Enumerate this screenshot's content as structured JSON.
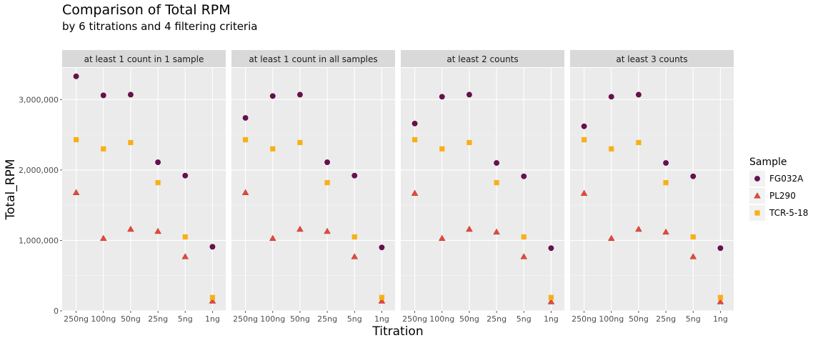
{
  "chart_data": {
    "type": "scatter",
    "title": "Comparison of Total RPM",
    "subtitle": "by 6 titrations and 4 filtering criteria",
    "xlabel": "Titration",
    "ylabel": "Total_RPM",
    "categories": [
      "250ng",
      "100ng",
      "50ng",
      "25ng",
      "5ng",
      "1ng"
    ],
    "ylim": [
      0,
      3450000
    ],
    "yticks": [
      0,
      1000000,
      2000000,
      3000000
    ],
    "ytick_labels": [
      "0",
      "1,000,000",
      "2,000,000",
      "3,000,000"
    ],
    "grid": true,
    "legend": {
      "title": "Sample",
      "position": "right",
      "entries": [
        {
          "name": "FG032A",
          "color": "#6a0f4f",
          "shape": "circle"
        },
        {
          "name": "PL290",
          "color": "#e24a3b",
          "shape": "triangle"
        },
        {
          "name": "TCR-5-18",
          "color": "#f7b016",
          "shape": "square"
        }
      ]
    },
    "panels": [
      {
        "label": "at least 1 count in 1 sample",
        "series": [
          {
            "name": "FG032A",
            "values": [
              3330000,
              3060000,
              3070000,
              2110000,
              1920000,
              910000
            ]
          },
          {
            "name": "PL290",
            "values": [
              1680000,
              1030000,
              1160000,
              1130000,
              770000,
              140000
            ]
          },
          {
            "name": "TCR-5-18",
            "values": [
              2430000,
              2300000,
              2390000,
              1820000,
              1050000,
              190000
            ]
          }
        ]
      },
      {
        "label": "at least 1 count in all samples",
        "series": [
          {
            "name": "FG032A",
            "values": [
              2740000,
              3050000,
              3070000,
              2110000,
              1920000,
              900000
            ]
          },
          {
            "name": "PL290",
            "values": [
              1680000,
              1030000,
              1160000,
              1130000,
              770000,
              140000
            ]
          },
          {
            "name": "TCR-5-18",
            "values": [
              2430000,
              2300000,
              2390000,
              1820000,
              1050000,
              190000
            ]
          }
        ]
      },
      {
        "label": "at least 2 counts",
        "series": [
          {
            "name": "FG032A",
            "values": [
              2660000,
              3040000,
              3070000,
              2100000,
              1910000,
              890000
            ]
          },
          {
            "name": "PL290",
            "values": [
              1670000,
              1030000,
              1160000,
              1120000,
              770000,
              130000
            ]
          },
          {
            "name": "TCR-5-18",
            "values": [
              2430000,
              2300000,
              2390000,
              1820000,
              1050000,
              190000
            ]
          }
        ]
      },
      {
        "label": "at least 3 counts",
        "series": [
          {
            "name": "FG032A",
            "values": [
              2620000,
              3040000,
              3070000,
              2100000,
              1910000,
              890000
            ]
          },
          {
            "name": "PL290",
            "values": [
              1670000,
              1030000,
              1160000,
              1120000,
              770000,
              130000
            ]
          },
          {
            "name": "TCR-5-18",
            "values": [
              2430000,
              2300000,
              2390000,
              1820000,
              1050000,
              190000
            ]
          }
        ]
      }
    ]
  }
}
